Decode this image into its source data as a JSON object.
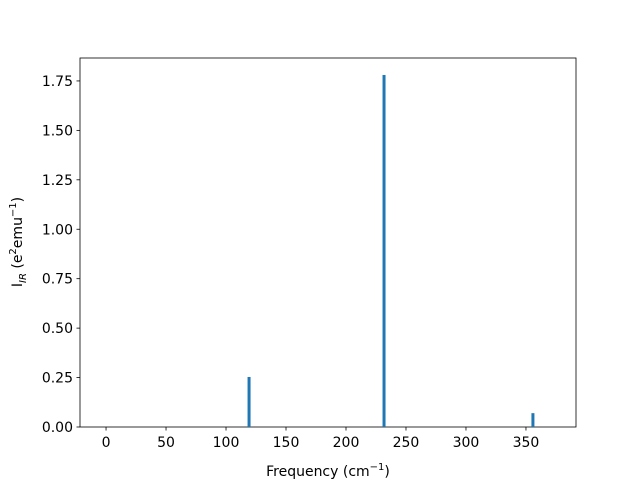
{
  "chart_data": {
    "type": "bar",
    "x_label_parts": [
      "Frequency (cm",
      "−1",
      ")"
    ],
    "y_label_parts": [
      "I",
      "IR",
      " (e",
      "2",
      "emu",
      "−1",
      ")"
    ],
    "x": [
      119.2,
      231.7,
      355.8
    ],
    "values": [
      0.253,
      1.78,
      0.07
    ],
    "color": "#1f77b4",
    "xlim": [
      -21.7,
      391.7
    ],
    "xticks": [
      0,
      50,
      100,
      150,
      200,
      250,
      300,
      350
    ],
    "ylim": [
      0,
      1.866
    ],
    "yticks": [
      {
        "value": 0,
        "label": "0.00"
      },
      {
        "value": 0.25,
        "label": "0.25"
      },
      {
        "value": 0.5,
        "label": "0.50"
      },
      {
        "value": 0.75,
        "label": "0.75"
      },
      {
        "value": 1.0,
        "label": "1.00"
      },
      {
        "value": 1.25,
        "label": "1.25"
      },
      {
        "value": 1.5,
        "label": "1.50"
      },
      {
        "value": 1.75,
        "label": "1.75"
      }
    ],
    "grid": false
  }
}
